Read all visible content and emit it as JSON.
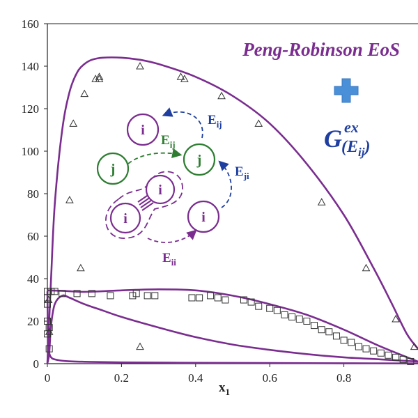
{
  "chart_data": {
    "type": "scatter",
    "title": "Peng-Robinson EoS",
    "xlabel": "x",
    "xlabel_sub": "1",
    "ylabel": "",
    "xlim": [
      0,
      1.0
    ],
    "ylim": [
      0,
      160
    ],
    "xticks": [
      0,
      0.2,
      0.4,
      0.6,
      0.8
    ],
    "xtick_labels": [
      "0",
      "0.2",
      "0.4",
      "0.6",
      "0.8"
    ],
    "yticks": [
      0,
      20,
      40,
      60,
      80,
      100,
      120,
      140,
      160
    ],
    "ytick_labels": [
      "0",
      "20",
      "40",
      "60",
      "80",
      "100",
      "120",
      "140",
      "160"
    ],
    "grid": false,
    "legend": "none",
    "series": [
      {
        "marker": "triangle-open",
        "x": [
          0.003,
          0.005,
          0.07,
          0.09,
          0.1,
          0.13,
          0.14,
          0.14,
          0.25,
          0.36,
          0.37,
          0.47,
          0.57,
          0.74,
          0.86,
          0.94,
          0.99,
          0.06,
          0.25
        ],
        "y": [
          30,
          15,
          113,
          45,
          127,
          134,
          135,
          134,
          140,
          135,
          134,
          126,
          113,
          76,
          45,
          21,
          8,
          77,
          8
        ]
      },
      {
        "marker": "square-open",
        "x": [
          0.0,
          0.0,
          0.0,
          0.0,
          0.0,
          0.005,
          0.005,
          0.01,
          0.02,
          0.04,
          0.08,
          0.12,
          0.17,
          0.23,
          0.24,
          0.27,
          0.29,
          0.39,
          0.41,
          0.44,
          0.46,
          0.48,
          0.53,
          0.55,
          0.57,
          0.6,
          0.62,
          0.64,
          0.66,
          0.68,
          0.7,
          0.72,
          0.74,
          0.76,
          0.78,
          0.8,
          0.82,
          0.84,
          0.86,
          0.88,
          0.9,
          0.92,
          0.94,
          0.96,
          0.98
        ],
        "y": [
          34,
          31,
          28,
          20,
          14,
          17,
          7,
          34,
          34,
          33,
          33,
          33,
          32,
          32,
          33,
          32,
          32,
          31,
          31,
          32,
          31,
          30,
          30,
          29,
          27,
          26,
          25,
          23,
          22,
          21,
          20,
          18,
          16,
          15,
          13,
          11,
          10,
          8,
          7,
          6,
          5,
          4,
          3,
          2,
          1
        ]
      }
    ],
    "curves": [
      {
        "name": "",
        "color": "#7a2d8f",
        "x": [
          0.0,
          0.01,
          0.02,
          0.04,
          0.06,
          0.08,
          0.1,
          0.12,
          0.15,
          0.2,
          0.25,
          0.3,
          0.4,
          0.5,
          0.6,
          0.7,
          0.8,
          0.88,
          0.93,
          0.97,
          1.0
        ],
        "y": [
          0,
          40,
          75,
          110,
          128,
          137,
          141,
          143,
          144,
          144,
          143,
          141,
          135,
          126,
          113,
          94,
          70,
          45,
          28,
          14,
          7
        ]
      },
      {
        "name": "",
        "color": "#7a2d8f",
        "x": [
          0.0,
          0.005,
          0.01,
          0.02,
          0.04,
          0.06,
          0.1,
          0.15,
          0.2,
          0.3,
          0.4,
          0.5,
          0.6,
          0.7,
          0.8,
          0.9,
          1.0
        ],
        "y": [
          0,
          5,
          18,
          28,
          32,
          31,
          28,
          25,
          22,
          17,
          12.5,
          9,
          6.5,
          4.5,
          3,
          2,
          1
        ]
      },
      {
        "name": "",
        "color": "#7a2d8f",
        "x": [
          0.0,
          0.05,
          0.1,
          0.2,
          0.3,
          0.4,
          0.5,
          0.6,
          0.7,
          0.8,
          0.9,
          1.0
        ],
        "y": [
          34.5,
          34.2,
          33.8,
          34.5,
          35,
          34.5,
          32,
          28,
          23,
          16,
          8,
          1
        ]
      },
      {
        "name": "",
        "color": "#7a2d8f",
        "x": [
          0.0,
          0.002,
          0.005,
          0.01,
          0.02,
          0.05,
          0.1,
          0.2,
          0.4,
          0.6,
          0.8,
          1.0
        ],
        "y": [
          34,
          10,
          5,
          3,
          2,
          1.2,
          0.9,
          0.6,
          0.4,
          0.3,
          0.2,
          0.1
        ]
      }
    ],
    "annotation": {
      "title": "Peng-Robinson EoS",
      "gex_main": "G",
      "gex_sup": "ex",
      "gex_arg": "(E",
      "gex_arg_sub": "ij",
      "gex_close": ")",
      "nodes": [
        {
          "label": "i",
          "color": "#7a2d8f"
        },
        {
          "label": "j",
          "color": "#2e7d32"
        },
        {
          "label": "j",
          "color": "#2e7d32"
        },
        {
          "label": "i",
          "color": "#7a2d8f"
        },
        {
          "label": "i",
          "color": "#7a2d8f"
        },
        {
          "label": "i",
          "color": "#7a2d8f"
        }
      ],
      "edges": [
        {
          "main": "E",
          "sub": "ij",
          "color": "#1f3fa0"
        },
        {
          "main": "E",
          "sub": "ij",
          "color": "#2e7d32"
        },
        {
          "main": "E",
          "sub": "ji",
          "color": "#1f3fa0"
        },
        {
          "main": "E",
          "sub": "ii",
          "color": "#7a2d8f"
        }
      ]
    },
    "colors": {
      "curve": "#7a2d8f",
      "markers": "#333333",
      "title": "#7a2d8f",
      "gex": "#1f3fa0",
      "plus": "#4a90d9"
    }
  }
}
